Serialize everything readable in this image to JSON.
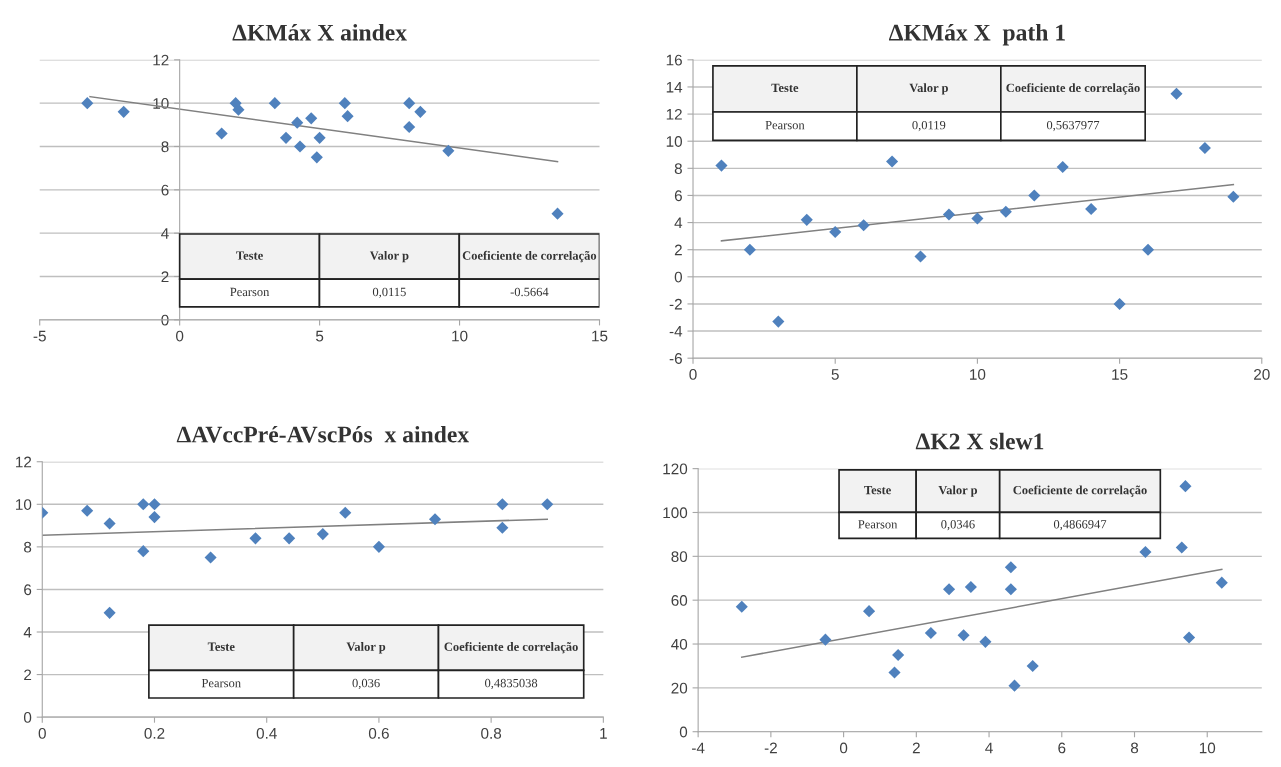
{
  "chart_data": [
    {
      "type": "scatter",
      "title": "ΔKMáx X aindex",
      "xlim": [
        -5,
        15
      ],
      "ylim": [
        0,
        12
      ],
      "xticks": [
        -5,
        0,
        5,
        10,
        15
      ],
      "yticks": [
        0,
        2,
        4,
        6,
        8,
        10,
        12
      ],
      "grid": "y",
      "series": [
        {
          "type": "scatter",
          "color": "#4f81bd",
          "marker": "diamond",
          "x": [
            -3.3,
            -2,
            1.5,
            2,
            2.1,
            3.4,
            3.8,
            4.2,
            4.3,
            4.7,
            4.9,
            5,
            5.9,
            6,
            8.2,
            8.2,
            8.6,
            9.6,
            13.5
          ],
          "values": [
            10,
            9.6,
            8.6,
            10,
            9.7,
            10,
            8.4,
            9.1,
            8,
            9.3,
            7.5,
            8.4,
            10,
            9.4,
            10,
            8.9,
            9.6,
            7.8,
            4.9
          ]
        },
        {
          "type": "line",
          "color": "#808080",
          "marker": "none",
          "x": [
            -3.2,
            13.5
          ],
          "values": [
            10.3,
            7.3
          ]
        }
      ],
      "annotations": [
        "Teste",
        "Valor p",
        "Coeficiente de correlação",
        "Pearson",
        "0,0115",
        "-0.5664"
      ]
    },
    {
      "type": "scatter",
      "title": "ΔKMáx X  path 1",
      "xlim": [
        0,
        20
      ],
      "ylim": [
        -6,
        16
      ],
      "xticks": [
        0,
        5,
        10,
        15,
        20
      ],
      "yticks": [
        -6,
        -4,
        -2,
        0,
        2,
        4,
        6,
        8,
        10,
        12,
        14,
        16
      ],
      "grid": "y",
      "series": [
        {
          "type": "scatter",
          "color": "#4f81bd",
          "marker": "diamond",
          "x": [
            1,
            2,
            3,
            4,
            5,
            6,
            7,
            8,
            9,
            10,
            11,
            12,
            13,
            14,
            15,
            16,
            17,
            18,
            19
          ],
          "values": [
            8.2,
            2,
            -3.3,
            4.2,
            3.3,
            3.8,
            8.5,
            1.5,
            4.6,
            4.3,
            4.8,
            6,
            8.1,
            5,
            -2,
            2,
            13.5,
            9.5,
            5.9
          ]
        },
        {
          "type": "line",
          "color": "#808080",
          "marker": "none",
          "x": [
            1,
            19
          ],
          "values": [
            2.65,
            6.8
          ]
        }
      ],
      "annotations": [
        "Teste",
        "Valor p",
        "Coeficiente de correlação",
        "Pearson",
        "0,0119",
        "0,5637977"
      ]
    },
    {
      "type": "scatter",
      "title": "ΔAVccPré-AVscPós  x aindex",
      "xlim": [
        0,
        1
      ],
      "ylim": [
        0,
        12
      ],
      "xticks": [
        0,
        0.2,
        0.4,
        0.6,
        0.8,
        1
      ],
      "yticks": [
        0,
        2,
        4,
        6,
        8,
        10,
        12
      ],
      "grid": "y",
      "series": [
        {
          "type": "scatter",
          "color": "#4f81bd",
          "marker": "diamond",
          "x": [
            0,
            0.08,
            0.12,
            0.12,
            0.18,
            0.18,
            0.2,
            0.2,
            0.3,
            0.38,
            0.44,
            0.5,
            0.54,
            0.6,
            0.7,
            0.82,
            0.82,
            0.9
          ],
          "values": [
            9.6,
            9.7,
            9.1,
            4.9,
            10,
            7.8,
            10,
            9.4,
            7.5,
            8.4,
            8.4,
            8.6,
            9.6,
            8,
            9.3,
            10,
            8.9,
            10
          ]
        },
        {
          "type": "line",
          "color": "#808080",
          "marker": "none",
          "x": [
            0,
            0.9
          ],
          "values": [
            8.55,
            9.3
          ]
        }
      ],
      "annotations": [
        "Teste",
        "Valor p",
        "Coeficiente de correlação",
        "Pearson",
        "0,036",
        "0,4835038"
      ]
    },
    {
      "type": "scatter",
      "title": "ΔK2 X slew1",
      "xlim": [
        -4,
        11.5
      ],
      "ylim": [
        0,
        120
      ],
      "xticks": [
        -4,
        -2,
        0,
        2,
        4,
        6,
        8,
        10
      ],
      "yticks": [
        0,
        20,
        40,
        60,
        80,
        100,
        120
      ],
      "grid": "y",
      "series": [
        {
          "type": "scatter",
          "color": "#4f81bd",
          "marker": "diamond",
          "x": [
            -2.8,
            -0.5,
            0.7,
            1.4,
            1.5,
            2.4,
            2.9,
            3.3,
            3.5,
            3.9,
            4.6,
            4.6,
            4.7,
            5.2,
            8.3,
            9.3,
            9.4,
            9.5,
            10.4
          ],
          "values": [
            57,
            42,
            55,
            27,
            35,
            45,
            65,
            44,
            66,
            41,
            75,
            65,
            21,
            30,
            82,
            84,
            112,
            43,
            68
          ]
        },
        {
          "type": "line",
          "color": "#808080",
          "marker": "none",
          "x": [
            -2.8,
            10.4
          ],
          "values": [
            34,
            74
          ]
        }
      ],
      "annotations": [
        "Teste",
        "Valor p",
        "Coeficiente de correlação",
        "Pearson",
        "0,0346",
        "0,4866947"
      ]
    }
  ]
}
